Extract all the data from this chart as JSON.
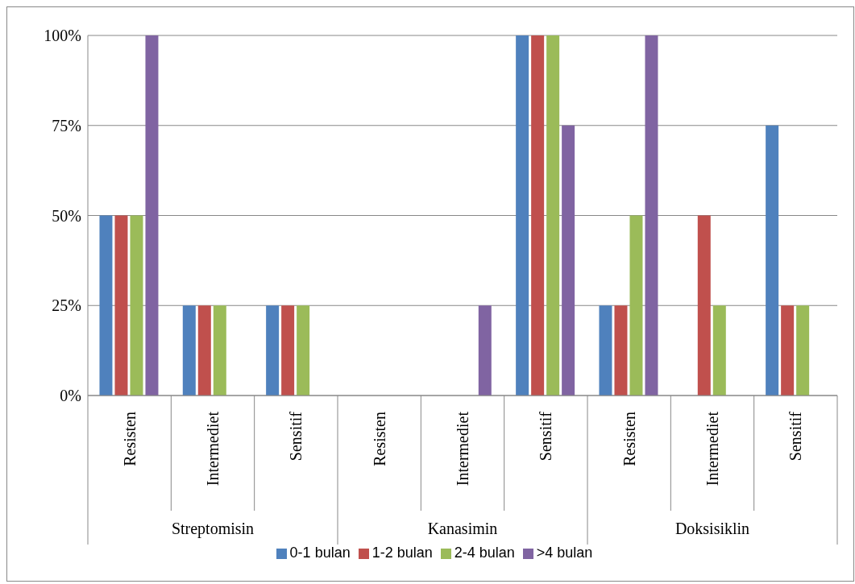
{
  "chart_data": {
    "type": "bar",
    "categories": [
      "Resisten",
      "Intermediet",
      "Sensitif",
      "Resisten",
      "Intermediet",
      "Sensitif",
      "Resisten",
      "Intermediet",
      "Sensitif"
    ],
    "series": [
      {
        "name": "0-1 bulan",
        "color": "#4f81bd",
        "values": [
          50,
          25,
          25,
          0,
          0,
          100,
          25,
          0,
          75
        ]
      },
      {
        "name": "1-2 bulan",
        "color": "#c0504d",
        "values": [
          50,
          25,
          25,
          0,
          0,
          100,
          25,
          50,
          25
        ]
      },
      {
        "name": "2-4 bulan",
        "color": "#9bbb59",
        "values": [
          50,
          25,
          25,
          0,
          0,
          100,
          50,
          25,
          25
        ]
      },
      {
        "name": ">4 bulan",
        "color": "#8064a2",
        "values": [
          100,
          0,
          0,
          0,
          25,
          75,
          100,
          0,
          0
        ]
      }
    ],
    "annotations": [
      "Streptomisin",
      "Kanasimin",
      "Doksisiklin"
    ],
    "ylim": [
      0,
      100
    ],
    "yticks": [
      {
        "value": 0,
        "label": "0%"
      },
      {
        "value": 25,
        "label": "25%"
      },
      {
        "value": 50,
        "label": "50%"
      },
      {
        "value": 75,
        "label": "75%"
      },
      {
        "value": 100,
        "label": "100%"
      }
    ],
    "grid": "y",
    "legend": "bottom"
  }
}
